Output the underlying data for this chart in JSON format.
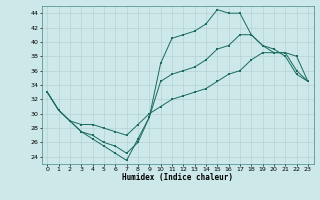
{
  "xlabel": "Humidex (Indice chaleur)",
  "bg_color": "#cce8e8",
  "line_color": "#1a6b5e",
  "grid_color": "#b0cccc",
  "xlim": [
    -0.5,
    23.5
  ],
  "ylim": [
    23,
    45
  ],
  "yticks": [
    24,
    26,
    28,
    30,
    32,
    34,
    36,
    38,
    40,
    42,
    44
  ],
  "xticks": [
    0,
    1,
    2,
    3,
    4,
    5,
    6,
    7,
    8,
    9,
    10,
    11,
    12,
    13,
    14,
    15,
    16,
    17,
    18,
    19,
    20,
    21,
    22,
    23
  ],
  "line1_x": [
    0,
    1,
    2,
    3,
    4,
    5,
    6,
    7,
    8,
    9,
    10,
    11,
    12,
    13,
    14,
    15,
    16,
    17,
    18,
    19,
    20,
    21,
    22,
    23
  ],
  "line1_y": [
    33,
    30.5,
    29,
    27.5,
    26.5,
    25.5,
    24.5,
    23.5,
    26.5,
    29.5,
    37,
    40.5,
    41,
    41.5,
    42.5,
    44.5,
    44,
    44,
    41,
    39.5,
    38.5,
    38.5,
    36,
    34.5
  ],
  "line2_x": [
    0,
    1,
    2,
    3,
    4,
    5,
    6,
    7,
    8,
    9,
    10,
    11,
    12,
    13,
    14,
    15,
    16,
    17,
    18,
    19,
    20,
    21,
    22,
    23
  ],
  "line2_y": [
    33,
    30.5,
    29,
    27.5,
    27,
    26,
    25.5,
    24.5,
    26,
    29.5,
    34.5,
    35.5,
    36,
    36.5,
    37.5,
    39,
    39.5,
    41,
    41,
    39.5,
    39,
    38,
    35.5,
    34.5
  ],
  "line3_x": [
    0,
    1,
    2,
    3,
    4,
    5,
    6,
    7,
    8,
    9,
    10,
    11,
    12,
    13,
    14,
    15,
    16,
    17,
    18,
    19,
    20,
    21,
    22,
    23
  ],
  "line3_y": [
    33,
    30.5,
    29,
    28.5,
    28.5,
    28,
    27.5,
    27,
    28.5,
    30,
    31,
    32,
    32.5,
    33,
    33.5,
    34.5,
    35.5,
    36,
    37.5,
    38.5,
    38.5,
    38.5,
    38,
    34.5
  ]
}
